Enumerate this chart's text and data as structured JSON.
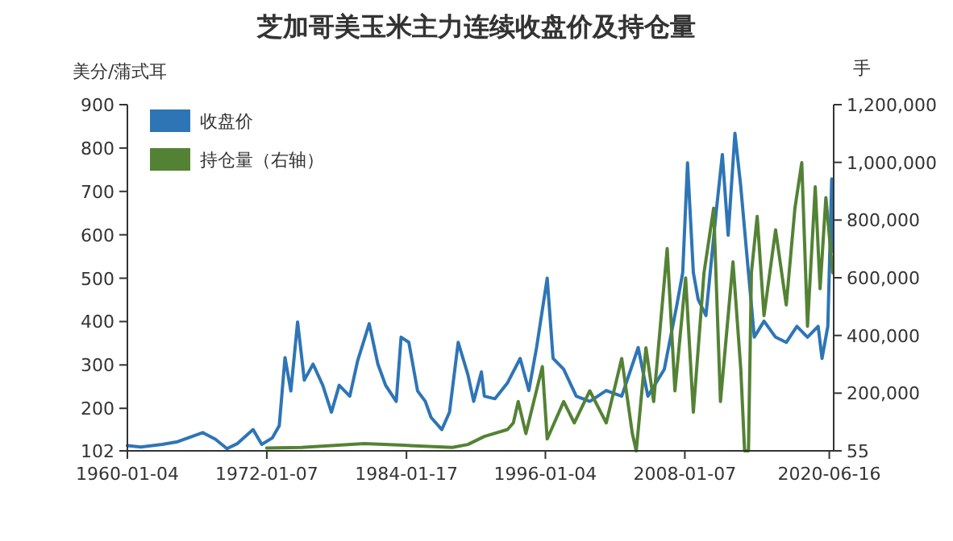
{
  "chart_data": {
    "type": "line",
    "title": "芝加哥美玉米主力连续收盘价及持仓量",
    "ylabel": "美分/蒲式耳",
    "y2label": "手",
    "xlim": [
      "1960-01-04",
      "2020-11"
    ],
    "xticks": [
      {
        "value": "1960-01-04",
        "label": "1960-01-04"
      },
      {
        "value": "1972-01-07",
        "label": "1972-01-07"
      },
      {
        "value": "1984-01-17",
        "label": "1984-01-17"
      },
      {
        "value": "1996-01-04",
        "label": "1996-01-04"
      },
      {
        "value": "2008-01-07",
        "label": "2008-01-07"
      },
      {
        "value": "2020-06-16",
        "label": "2020-06-16"
      }
    ],
    "ylim": [
      102,
      900
    ],
    "yticks": [
      102,
      200,
      300,
      400,
      500,
      600,
      700,
      800,
      900
    ],
    "y2lim": [
      55,
      1200000
    ],
    "y2ticks": [
      55,
      {
        "value": 200000,
        "label": "200,000"
      },
      {
        "value": 400000,
        "label": "400,000"
      },
      {
        "value": 600000,
        "label": "600,000"
      },
      {
        "value": 800000,
        "label": "800,000"
      },
      {
        "value": 1000000,
        "label": "1,000,000"
      },
      {
        "value": 1200000,
        "label": "1,200,000"
      }
    ],
    "grid": false,
    "legend": "top left",
    "marker": "none",
    "line_style": "solid",
    "series": [
      {
        "name": "收盘价",
        "color": "#2e75b6",
        "x": [
          "1960-01-04",
          "1961-03",
          "1963-01",
          "1964-05",
          "1965-04",
          "1966-07",
          "1967-08",
          "1968-08",
          "1969-07",
          "1970-11",
          "1971-08",
          "1972-07",
          "1973-02",
          "1973-08",
          "1974-02",
          "1974-09",
          "1975-04",
          "1976-01",
          "1976-11",
          "1977-08",
          "1978-04",
          "1979-03",
          "1979-11",
          "1980-11",
          "1981-08",
          "1982-04",
          "1983-03",
          "1983-08",
          "1984-04",
          "1985-01",
          "1985-09",
          "1986-03",
          "1987-02",
          "1987-10",
          "1988-07",
          "1989-05",
          "1989-11",
          "1990-07",
          "1990-10",
          "1991-09",
          "1992-10",
          "1993-11",
          "1994-08",
          "1995-04",
          "1996-03",
          "1996-09",
          "1997-08",
          "1998-09",
          "1999-11",
          "2001-04",
          "2002-08",
          "2004-01",
          "2004-11",
          "2006-04",
          "2007-05",
          "2007-11",
          "2008-04",
          "2008-10",
          "2009-03",
          "2009-11",
          "2010-10",
          "2011-04",
          "2011-10",
          "2012-05",
          "2012-11",
          "2013-05",
          "2014-01",
          "2014-11",
          "2015-11",
          "2016-10",
          "2017-09",
          "2018-08",
          "2019-07",
          "2019-11",
          "2020-05",
          "2020-09",
          "2020-10"
        ],
        "values": [
          114,
          111,
          117,
          123,
          132,
          144,
          129,
          107,
          119,
          151,
          117,
          132,
          160,
          317,
          240,
          399,
          265,
          302,
          253,
          191,
          253,
          228,
          309,
          395,
          302,
          253,
          216,
          364,
          352,
          240,
          216,
          179,
          151,
          191,
          352,
          278,
          216,
          284,
          228,
          222,
          259,
          315,
          241,
          340,
          500,
          315,
          290,
          228,
          216,
          241,
          228,
          340,
          228,
          290,
          438,
          513,
          766,
          513,
          451,
          414,
          661,
          785,
          599,
          834,
          711,
          562,
          364,
          401,
          364,
          352,
          389,
          364,
          389,
          315,
          389,
          729,
          562
        ]
      },
      {
        "name": "持仓量（右轴）",
        "color": "#548235",
        "axis": "y2",
        "x": [
          "1972-01",
          "1975-01",
          "1980-06",
          "1983-06",
          "1988-01",
          "1989-05",
          "1990-10",
          "1992-10",
          "1993-04",
          "1993-09",
          "1994-05",
          "1995-10",
          "1996-03",
          "1997-08",
          "1998-07",
          "1999-11",
          "2001-04",
          "2002-08",
          "2003-07",
          "2003-11",
          "2004-09",
          "2005-05",
          "2006-07",
          "2007-03",
          "2008-02",
          "2008-10",
          "2009-09",
          "2010-07",
          "2011-02",
          "2012-03",
          "2012-11",
          "2013-03",
          "2013-07",
          "2013-10",
          "2014-04",
          "2014-11",
          "2015-11",
          "2016-10",
          "2017-07",
          "2018-02",
          "2018-08",
          "2019-04",
          "2019-09",
          "2020-03",
          "2020-10"
        ],
        "values": [
          10000,
          12000,
          25000,
          20000,
          12000,
          22000,
          50000,
          74000,
          97000,
          171000,
          60000,
          292000,
          41000,
          171000,
          97000,
          208000,
          97000,
          320000,
          60000,
          55,
          357000,
          171000,
          701000,
          208000,
          599000,
          134000,
          617000,
          841000,
          171000,
          655000,
          283000,
          55,
          55,
          617000,
          813000,
          469000,
          766000,
          506000,
          841000,
          999000,
          432000,
          915000,
          562000,
          878000,
          617000
        ]
      }
    ]
  }
}
